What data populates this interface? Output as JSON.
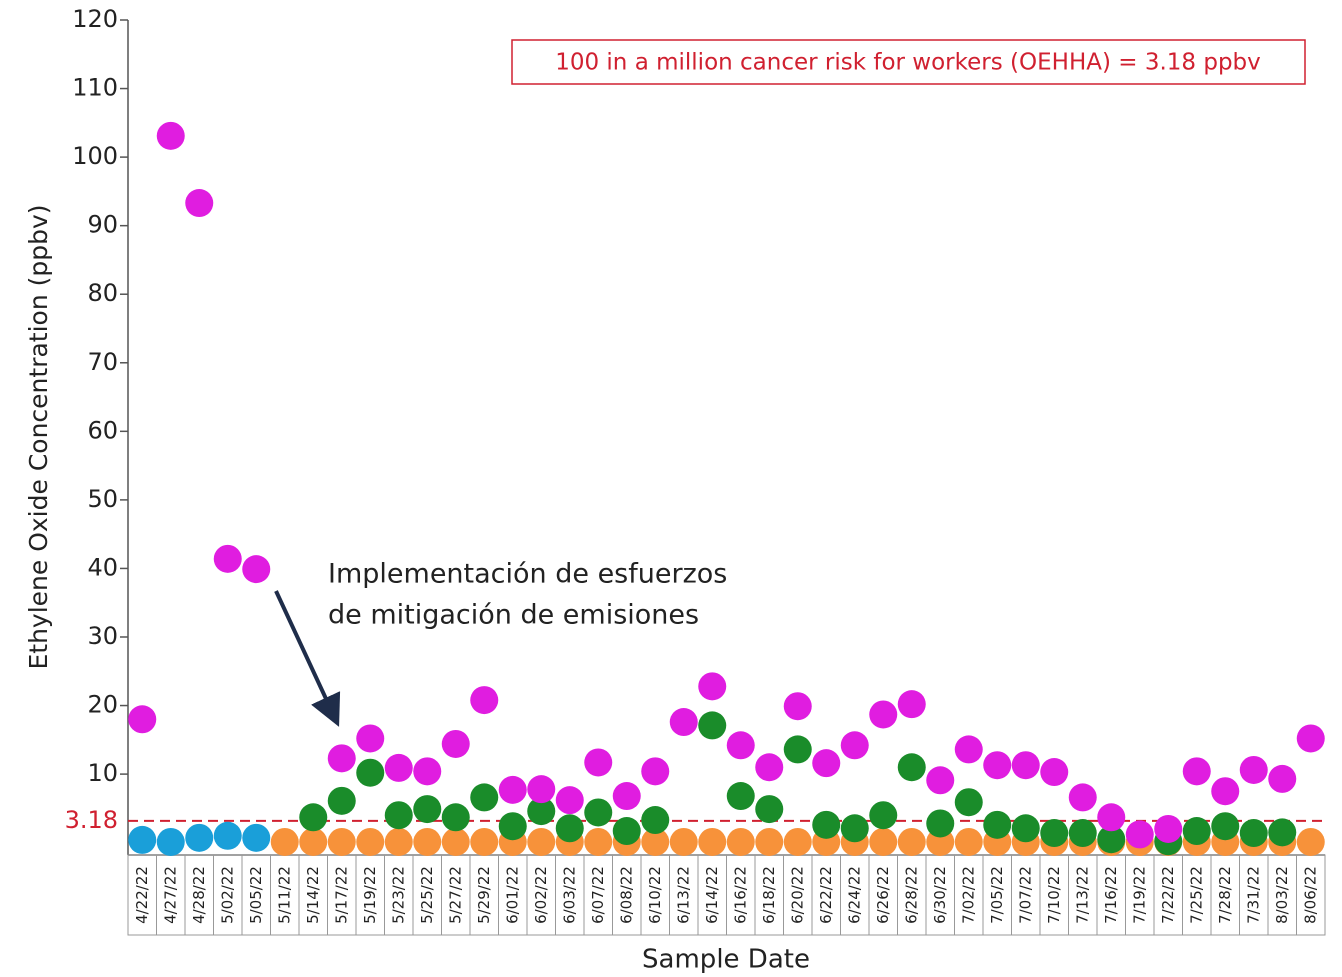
{
  "chart_data": {
    "type": "scatter",
    "y_label": "Ethylene Oxide Concentration (ppbv)",
    "x_label": "Sample Date",
    "categories": [
      "4/22/22",
      "4/27/22",
      "4/28/22",
      "5/02/22",
      "5/05/22",
      "5/11/22",
      "5/14/22",
      "5/17/22",
      "5/19/22",
      "5/23/22",
      "5/25/22",
      "5/27/22",
      "5/29/22",
      "6/01/22",
      "6/02/22",
      "6/03/22",
      "6/07/22",
      "6/08/22",
      "6/10/22",
      "6/13/22",
      "6/14/22",
      "6/16/22",
      "6/18/22",
      "6/20/22",
      "6/22/22",
      "6/24/22",
      "6/26/22",
      "6/28/22",
      "6/30/22",
      "7/02/22",
      "7/05/22",
      "7/07/22",
      "7/10/22",
      "7/13/22",
      "7/16/22",
      "7/19/22",
      "7/22/22",
      "7/25/22",
      "7/28/22",
      "7/31/22",
      "8/03/22",
      "8/06/22"
    ],
    "series": [
      {
        "color": "#1a9fd9",
        "values": [
          0.4,
          0.1,
          0.7,
          1.0,
          0.7,
          null,
          null,
          null,
          null,
          null,
          null,
          null,
          null,
          null,
          null,
          null,
          null,
          null,
          null,
          null,
          null,
          null,
          null,
          null,
          null,
          null,
          null,
          null,
          null,
          null,
          null,
          null,
          null,
          null,
          null,
          null,
          null,
          null,
          null,
          null,
          null,
          null
        ]
      },
      {
        "color": "#f7923a",
        "values": [
          null,
          null,
          null,
          null,
          null,
          0.1,
          0.1,
          0.1,
          0.1,
          0.1,
          0.1,
          0.1,
          0.1,
          0.1,
          0.1,
          0.1,
          0.1,
          0.1,
          0.1,
          0.1,
          0.1,
          0.1,
          0.1,
          0.1,
          0.1,
          0.1,
          0.1,
          0.1,
          0.1,
          0.1,
          0.1,
          0.1,
          0.1,
          0.1,
          0.1,
          0.1,
          0.1,
          0.1,
          0.1,
          0.1,
          0.1,
          0.1
        ]
      },
      {
        "color": "#1a8c2a",
        "values": [
          null,
          null,
          null,
          null,
          null,
          null,
          3.7,
          6.1,
          10.2,
          4.0,
          4.9,
          3.7,
          6.6,
          2.4,
          4.6,
          2.1,
          4.4,
          1.7,
          3.3,
          null,
          17.1,
          6.8,
          4.9,
          13.6,
          2.6,
          2.1,
          4.0,
          11.0,
          2.8,
          5.9,
          2.6,
          2.1,
          1.4,
          1.4,
          0.5,
          null,
          0.2,
          1.7,
          2.4,
          1.4,
          1.5,
          null
        ]
      },
      {
        "color": "#e01de0",
        "values": [
          18.0,
          103.1,
          93.3,
          41.4,
          39.9,
          null,
          null,
          12.3,
          15.2,
          10.9,
          10.4,
          14.4,
          20.8,
          7.7,
          7.8,
          6.2,
          11.7,
          6.8,
          10.4,
          17.6,
          22.8,
          14.2,
          11.0,
          19.9,
          11.6,
          14.2,
          18.7,
          20.2,
          9.1,
          13.6,
          11.3,
          11.3,
          10.3,
          6.6,
          3.7,
          1.2,
          2.0,
          10.4,
          7.5,
          10.6,
          9.3,
          15.2
        ]
      }
    ],
    "ylim": [
      -1.8,
      120
    ],
    "yticks": [
      10,
      20,
      30,
      40,
      50,
      60,
      70,
      80,
      90,
      100,
      110,
      120
    ],
    "reference_line": {
      "value": 3.18,
      "color": "#d02030"
    },
    "reference_note": "100 in a million cancer risk for workers (OEHHA) = 3.18 ppbv",
    "annotation": [
      "Implementación de esfuerzos",
      "de mitigación de emisiones"
    ]
  }
}
